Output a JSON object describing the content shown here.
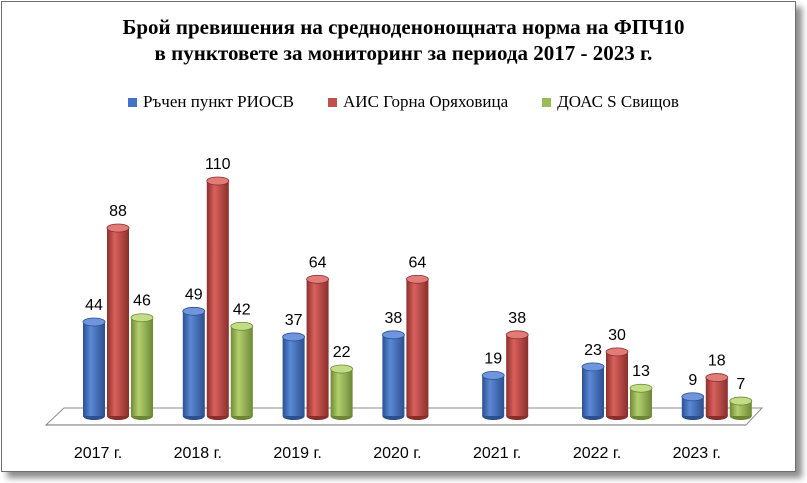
{
  "chart_data": {
    "type": "bar",
    "title_lines": [
      "Брой превишения на средноденонощната норма на ФПЧ10",
      "в пунктовете за мониторинг за периода 2017 - 2023 г."
    ],
    "categories": [
      "2017 г.",
      "2018 г.",
      "2019 г.",
      "2020 г.",
      "2021 г.",
      "2022 г.",
      "2023 г."
    ],
    "series": [
      {
        "name": "Ръчен пункт  РИОСВ",
        "color": "#4472c4",
        "values": [
          44,
          49,
          37,
          38,
          19,
          23,
          9
        ]
      },
      {
        "name": "АИС Горна Оряховица",
        "color": "#c0504d",
        "values": [
          88,
          110,
          64,
          64,
          38,
          30,
          18
        ]
      },
      {
        "name": "ДОАС S Свищов",
        "color": "#9bbb59",
        "values": [
          46,
          42,
          22,
          null,
          null,
          13,
          7
        ]
      }
    ],
    "ylim": [
      0,
      110
    ],
    "grid": false,
    "legend_position": "top",
    "style": "3d-cylinder"
  }
}
